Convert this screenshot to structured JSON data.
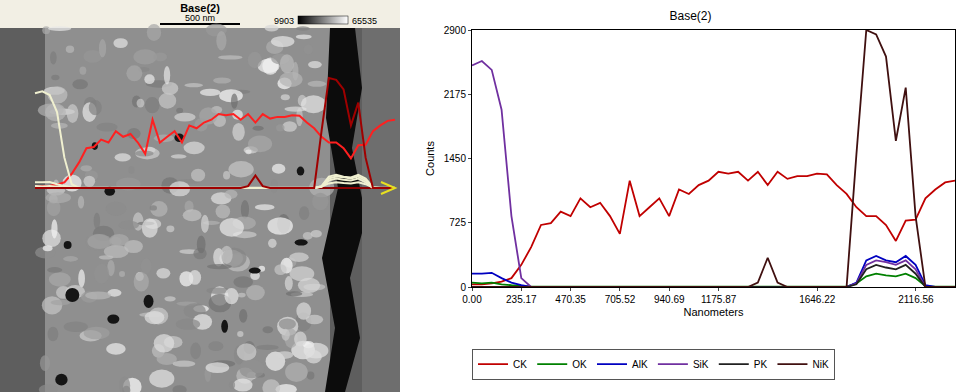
{
  "chart_data": {
    "type": "line",
    "title": "Base(2)",
    "x_label": "Nanometers",
    "y_label": "Counts",
    "x": [
      0,
      47,
      94,
      141,
      188,
      235,
      282,
      329,
      376,
      423,
      470,
      517,
      564,
      611,
      658,
      705,
      752,
      799,
      846,
      893,
      940,
      987,
      1034,
      1081,
      1128,
      1175,
      1222,
      1269,
      1316,
      1363,
      1410,
      1457,
      1504,
      1551,
      1598,
      1645,
      1692,
      1739,
      1786,
      1833,
      1880,
      1927,
      1974,
      2021,
      2068,
      2115,
      2162,
      2209,
      2256,
      2303
    ],
    "series": [
      {
        "name": "CK",
        "color": "#c00000",
        "values": [
          30,
          30,
          40,
          60,
          100,
          250,
          450,
          700,
          720,
          850,
          800,
          1000,
          900,
          950,
          800,
          600,
          1200,
          800,
          900,
          1000,
          800,
          1100,
          1050,
          1150,
          1200,
          1300,
          1280,
          1300,
          1200,
          1300,
          1150,
          1300,
          1220,
          1250,
          1250,
          1280,
          1270,
          1150,
          1050,
          900,
          800,
          800,
          700,
          520,
          750,
          760,
          1000,
          1100,
          1180,
          1200
        ]
      },
      {
        "name": "OK",
        "color": "#008000",
        "values": [
          50,
          40,
          50,
          30,
          20,
          10,
          5,
          5,
          5,
          5,
          5,
          5,
          5,
          5,
          5,
          5,
          5,
          5,
          5,
          5,
          5,
          5,
          5,
          5,
          5,
          5,
          5,
          5,
          5,
          5,
          5,
          5,
          5,
          5,
          5,
          5,
          5,
          5,
          5,
          40,
          120,
          150,
          130,
          120,
          150,
          100,
          10,
          5,
          5,
          5
        ]
      },
      {
        "name": "AlK",
        "color": "#0000c0",
        "values": [
          150,
          150,
          160,
          100,
          50,
          20,
          0,
          0,
          0,
          0,
          0,
          0,
          0,
          0,
          0,
          0,
          0,
          0,
          0,
          0,
          0,
          0,
          0,
          0,
          0,
          0,
          0,
          0,
          0,
          0,
          0,
          0,
          0,
          0,
          0,
          0,
          0,
          0,
          0,
          50,
          300,
          350,
          300,
          280,
          350,
          250,
          20,
          0,
          0,
          0
        ]
      },
      {
        "name": "SiK",
        "color": "#7030a0",
        "values": [
          2500,
          2550,
          2450,
          2000,
          800,
          100,
          0,
          0,
          0,
          0,
          0,
          0,
          0,
          0,
          0,
          0,
          0,
          0,
          0,
          0,
          0,
          0,
          0,
          0,
          0,
          0,
          0,
          0,
          0,
          0,
          0,
          0,
          0,
          0,
          0,
          0,
          0,
          0,
          0,
          40,
          250,
          300,
          280,
          250,
          300,
          200,
          0,
          0,
          0,
          0
        ]
      },
      {
        "name": "PK",
        "color": "#202020",
        "values": [
          0,
          0,
          0,
          0,
          0,
          0,
          0,
          0,
          0,
          0,
          0,
          0,
          0,
          0,
          0,
          0,
          0,
          0,
          0,
          0,
          0,
          0,
          0,
          0,
          0,
          0,
          0,
          0,
          0,
          0,
          0,
          0,
          0,
          0,
          0,
          0,
          0,
          0,
          0,
          30,
          200,
          250,
          220,
          200,
          250,
          150,
          0,
          0,
          0,
          0
        ]
      },
      {
        "name": "NiK",
        "color": "#401010",
        "values": [
          0,
          0,
          0,
          0,
          0,
          0,
          0,
          0,
          0,
          0,
          0,
          0,
          0,
          0,
          0,
          0,
          0,
          0,
          0,
          0,
          0,
          0,
          0,
          0,
          0,
          0,
          0,
          0,
          0,
          50,
          330,
          50,
          0,
          0,
          0,
          0,
          0,
          0,
          0,
          1500,
          2900,
          2850,
          2600,
          1650,
          2250,
          800,
          0,
          0,
          0,
          0
        ]
      }
    ],
    "xlim": [
      0,
      2303
    ],
    "ylim": [
      0,
      2900
    ],
    "xticks": [
      {
        "value": 0,
        "label": "0.00"
      },
      235.17,
      470.35,
      705.52,
      940.69,
      1175.87,
      1646.22,
      2116.56
    ],
    "yticks": [
      0,
      725,
      1450,
      2175,
      2900
    ],
    "grid": false,
    "legend": "bottom"
  },
  "image_panel": {
    "title": "Base(2)",
    "scale_bar": "500 nm",
    "gray_min": "9903",
    "gray_max": "65535"
  }
}
